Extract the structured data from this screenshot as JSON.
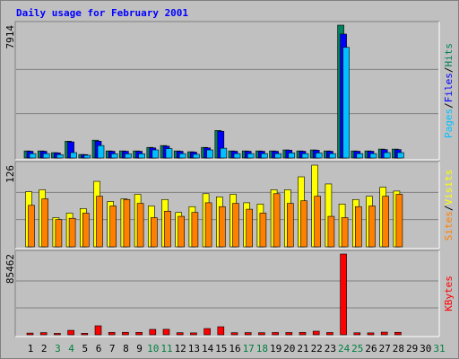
{
  "chart_data": [
    {
      "type": "bar",
      "title": "Daily usage for February 2001",
      "categories": [
        1,
        2,
        3,
        4,
        5,
        6,
        7,
        8,
        9,
        10,
        11,
        12,
        13,
        14,
        15,
        16,
        17,
        18,
        19,
        20,
        21,
        22,
        23,
        24,
        25,
        26,
        27,
        28,
        29,
        30,
        31
      ],
      "category_colors": [
        "#000000",
        "#000000",
        "#008040",
        "#008040",
        "#000000",
        "#000000",
        "#000000",
        "#000000",
        "#000000",
        "#008040",
        "#008040",
        "#000000",
        "#000000",
        "#000000",
        "#000000",
        "#000000",
        "#008040",
        "#008040",
        "#000000",
        "#000000",
        "#000000",
        "#000000",
        "#000000",
        "#008040",
        "#008040",
        "#000000",
        "#000000",
        "#000000",
        "#000000",
        "#000000",
        "#008040"
      ],
      "legend_separator": "/",
      "ylim": [
        0,
        7914
      ],
      "yticks": [
        7914
      ],
      "series": [
        {
          "name": "Pages",
          "color": "#00c0ff",
          "values": [
            260,
            260,
            200,
            320,
            160,
            740,
            250,
            250,
            250,
            480,
            560,
            260,
            220,
            480,
            580,
            260,
            260,
            260,
            260,
            300,
            260,
            300,
            260,
            6590,
            260,
            260,
            320,
            320,
            null,
            null,
            null
          ]
        },
        {
          "name": "Files",
          "color": "#0000ff",
          "values": [
            400,
            400,
            300,
            960,
            200,
            1000,
            400,
            400,
            400,
            600,
            700,
            400,
            350,
            600,
            1590,
            400,
            400,
            400,
            400,
            460,
            400,
            460,
            400,
            7380,
            400,
            400,
            500,
            500,
            null,
            null,
            null
          ]
        },
        {
          "name": "Hits",
          "color": "#00805c",
          "values": [
            420,
            420,
            320,
            1000,
            210,
            1060,
            420,
            420,
            420,
            630,
            740,
            420,
            370,
            630,
            1640,
            420,
            420,
            420,
            420,
            480,
            420,
            480,
            420,
            7914,
            420,
            420,
            530,
            530,
            null,
            null,
            null
          ]
        }
      ]
    },
    {
      "type": "bar",
      "legend_separator": "/",
      "ylim": [
        0,
        126
      ],
      "yticks": [
        126
      ],
      "series": [
        {
          "name": "Sites",
          "color": "#ff8000",
          "values": [
            64,
            74,
            42,
            44,
            52,
            78,
            63,
            73,
            67,
            45,
            55,
            47,
            53,
            68,
            62,
            67,
            58,
            52,
            82,
            67,
            71,
            78,
            47,
            45,
            62,
            63,
            78,
            81,
            null,
            null,
            null
          ]
        },
        {
          "name": "Visits",
          "color": "#ffff00",
          "values": [
            85,
            88,
            45,
            52,
            59,
            101,
            70,
            74,
            81,
            63,
            73,
            53,
            62,
            82,
            77,
            81,
            68,
            66,
            88,
            88,
            108,
            126,
            97,
            66,
            73,
            78,
            92,
            86,
            null,
            null,
            null
          ]
        }
      ]
    },
    {
      "type": "bar",
      "ylim": [
        0,
        85462
      ],
      "yticks": [
        85462
      ],
      "series": [
        {
          "name": "KBytes",
          "color": "#ff0000",
          "values": [
            1800,
            2300,
            1500,
            4700,
            1600,
            9500,
            2500,
            2600,
            2500,
            5700,
            5800,
            2200,
            2000,
            6600,
            8500,
            2200,
            2300,
            2200,
            2400,
            2400,
            2500,
            3800,
            2400,
            85462,
            2100,
            2000,
            2800,
            2600,
            null,
            null,
            null
          ]
        }
      ]
    }
  ]
}
